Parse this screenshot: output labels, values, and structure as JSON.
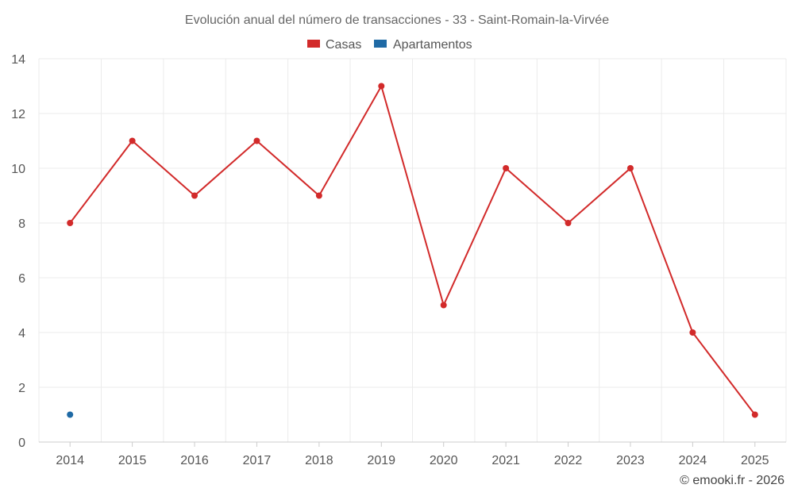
{
  "chart_data": {
    "type": "line",
    "title": "Evolución anual del número de transacciones - 33 - Saint-Romain-la-Virvée",
    "categories": [
      "2014",
      "2015",
      "2016",
      "2017",
      "2018",
      "2019",
      "2020",
      "2021",
      "2022",
      "2023",
      "2024",
      "2025"
    ],
    "series": [
      {
        "name": "Casas",
        "color": "#d22a2a",
        "values": [
          8,
          11,
          9,
          11,
          9,
          13,
          5,
          10,
          8,
          10,
          4,
          1
        ]
      },
      {
        "name": "Apartamentos",
        "color": "#1f6aa5",
        "values": [
          1,
          null,
          null,
          null,
          null,
          null,
          null,
          null,
          null,
          null,
          null,
          null
        ]
      }
    ],
    "ylim": [
      0,
      14
    ],
    "yticks": [
      0,
      2,
      4,
      6,
      8,
      10,
      12,
      14
    ],
    "xlabel": "",
    "ylabel": "",
    "grid": true,
    "legend_position": "top-center"
  },
  "credit": "© emooki.fr - 2026"
}
